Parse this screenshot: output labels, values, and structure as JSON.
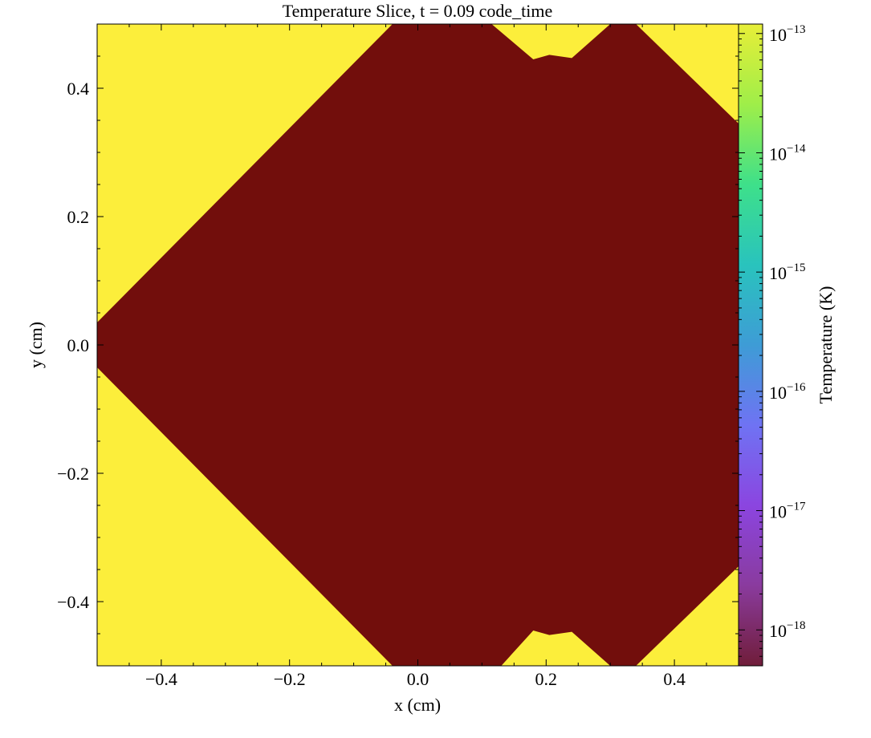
{
  "chart_data": {
    "type": "heatmap",
    "title": "Temperature Slice, t = 0.09 code_time",
    "xlabel": "x  (cm)",
    "ylabel": "y  (cm)",
    "xlim": [
      -0.5,
      0.5
    ],
    "ylim": [
      -0.5,
      0.5
    ],
    "x_ticks": [
      -0.4,
      -0.2,
      0.0,
      0.2,
      0.4
    ],
    "x_tick_labels": [
      "−0.4",
      "−0.2",
      "0.0",
      "0.2",
      "0.4"
    ],
    "y_ticks": [
      -0.4,
      -0.2,
      0.0,
      0.2,
      0.4
    ],
    "y_tick_labels": [
      "−0.4",
      "−0.2",
      "0.0",
      "0.2",
      "0.4"
    ],
    "grid": false,
    "colormap": "viridis",
    "background_color": "#fcee3b",
    "region_color": "#720e0c",
    "colorbar": {
      "label": "Temperature  (K)",
      "scale": "log",
      "range": [
        5e-19,
        1.2e-13
      ],
      "stops": [
        "#701d3a",
        "#8a3b9e",
        "#8b45e0",
        "#6f73f3",
        "#3e9cd6",
        "#29c3bd",
        "#3ee08a",
        "#9fee49",
        "#e7ee38"
      ],
      "ticks": [
        {
          "value": 1e-13,
          "mantissa": "10",
          "exponent": "−13"
        },
        {
          "value": 1e-14,
          "mantissa": "10",
          "exponent": "−14"
        },
        {
          "value": 1e-15,
          "mantissa": "10",
          "exponent": "−15"
        },
        {
          "value": 1e-16,
          "mantissa": "10",
          "exponent": "−16"
        },
        {
          "value": 1e-17,
          "mantissa": "10",
          "exponent": "−17"
        },
        {
          "value": 1e-18,
          "mantissa": "10",
          "exponent": "−18"
        }
      ]
    },
    "region_outline": [
      [
        -0.5,
        0.035
      ],
      [
        -0.0395,
        0.5
      ],
      [
        0.115,
        0.5
      ],
      [
        0.18,
        0.445
      ],
      [
        0.205,
        0.452
      ],
      [
        0.24,
        0.447
      ],
      [
        0.3,
        0.5
      ],
      [
        0.34,
        0.5
      ],
      [
        0.5,
        0.345
      ],
      [
        0.5,
        -0.345
      ],
      [
        0.34,
        -0.5
      ],
      [
        0.3,
        -0.5
      ],
      [
        0.24,
        -0.447
      ],
      [
        0.205,
        -0.452
      ],
      [
        0.18,
        -0.445
      ],
      [
        0.13,
        -0.5
      ],
      [
        -0.0395,
        -0.5
      ],
      [
        -0.5,
        -0.035
      ]
    ]
  }
}
